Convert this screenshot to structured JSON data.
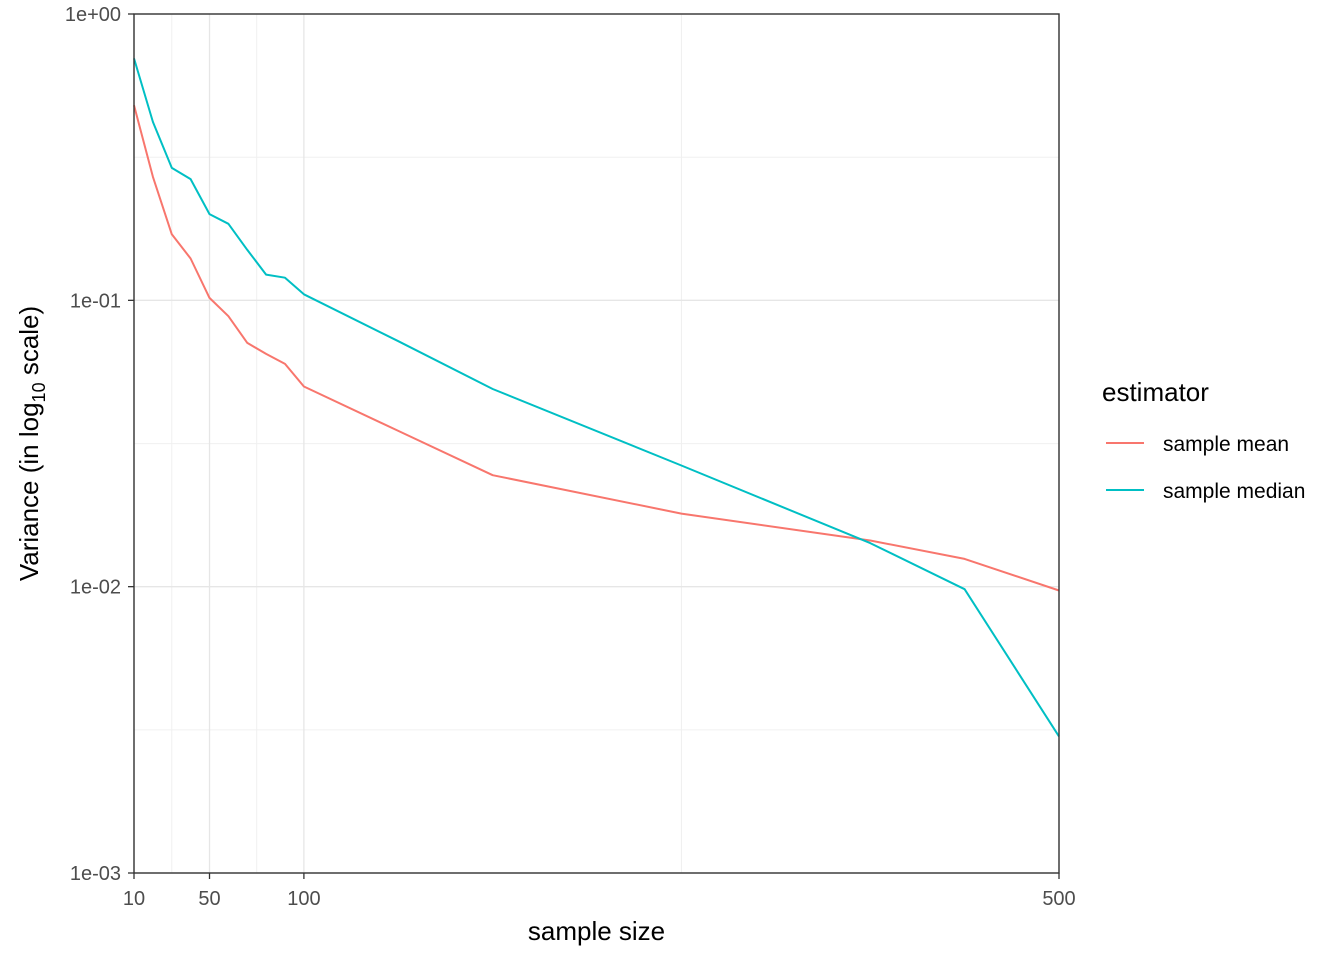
{
  "chart_data": {
    "type": "line",
    "xlabel": "sample size",
    "ylabel": {
      "prefix": "Variance (in log",
      "subscript": "10",
      "suffix": " scale)"
    },
    "y_scale": "log10",
    "xlim": [
      10,
      500
    ],
    "ylim": [
      0.001,
      1
    ],
    "x_ticks": [
      10,
      50,
      100,
      500
    ],
    "x_tick_labels": [
      "10",
      "50",
      "100",
      "500"
    ],
    "x_minor_gridlines": [
      30,
      75,
      300
    ],
    "y_ticks": [
      0.001,
      0.01,
      0.1,
      1
    ],
    "y_tick_labels": [
      "1e-03",
      "1e-02",
      "1e-01",
      "1e+00"
    ],
    "y_minor_gridlines": [
      0.00316,
      0.0316,
      0.316
    ],
    "grid": true,
    "legend": {
      "title": "estimator",
      "position": "right"
    },
    "series": [
      {
        "name": "sample mean",
        "color": "#F8766D",
        "x": [
          10,
          20,
          30,
          40,
          50,
          60,
          70,
          80,
          90,
          100,
          150,
          200,
          300,
          400,
          450,
          500
        ],
        "y": [
          0.48,
          0.27,
          0.17,
          0.14,
          0.102,
          0.088,
          0.071,
          0.065,
          0.06,
          0.05,
          0.035,
          0.0245,
          0.018,
          0.0145,
          0.0125,
          0.0097
        ]
      },
      {
        "name": "sample median",
        "color": "#00BFC4",
        "x": [
          10,
          20,
          30,
          40,
          50,
          60,
          70,
          80,
          90,
          100,
          150,
          200,
          300,
          400,
          450,
          500
        ],
        "y": [
          0.7,
          0.42,
          0.29,
          0.265,
          0.2,
          0.185,
          0.15,
          0.123,
          0.12,
          0.105,
          0.072,
          0.049,
          0.0265,
          0.0142,
          0.0098,
          0.003
        ]
      }
    ]
  }
}
